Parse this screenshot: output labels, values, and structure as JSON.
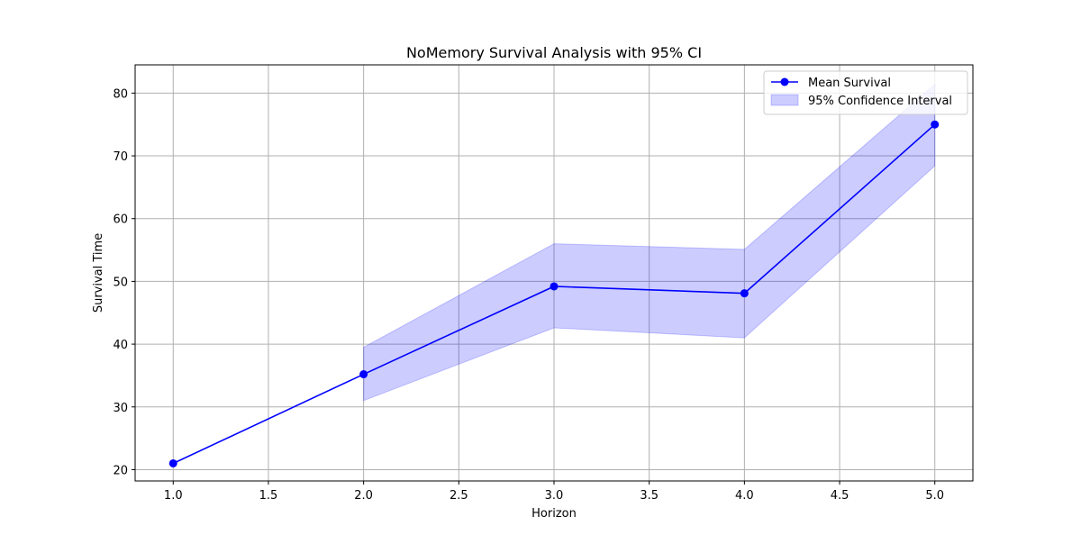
{
  "chart_data": {
    "type": "line",
    "title": "NoMemory Survival Analysis with 95% CI",
    "xlabel": "Horizon",
    "ylabel": "Survival Time",
    "xlim": [
      0.8,
      5.2
    ],
    "ylim": [
      18.2,
      84.5
    ],
    "xticks": [
      1.0,
      1.5,
      2.0,
      2.5,
      3.0,
      3.5,
      4.0,
      4.5,
      5.0
    ],
    "xtick_labels": [
      "1.0",
      "1.5",
      "2.0",
      "2.5",
      "3.0",
      "3.5",
      "4.0",
      "4.5",
      "5.0"
    ],
    "yticks": [
      20,
      30,
      40,
      50,
      60,
      70,
      80
    ],
    "ytick_labels": [
      "20",
      "30",
      "40",
      "50",
      "60",
      "70",
      "80"
    ],
    "grid": true,
    "legend_position": "top-right",
    "series": [
      {
        "name": "Mean Survival",
        "kind": "line-with-markers",
        "color": "#0000ff",
        "x": [
          1,
          2,
          3,
          4,
          5
        ],
        "y": [
          21.0,
          35.2,
          49.2,
          48.1,
          75.0
        ]
      },
      {
        "name": "95% Confidence Interval",
        "kind": "band",
        "color": "#0000ff",
        "fill_opacity": 0.2,
        "x": [
          2,
          3,
          4,
          5
        ],
        "lower": [
          31.0,
          42.6,
          41.0,
          68.4
        ],
        "upper": [
          39.5,
          56.0,
          55.1,
          81.4
        ]
      }
    ]
  }
}
